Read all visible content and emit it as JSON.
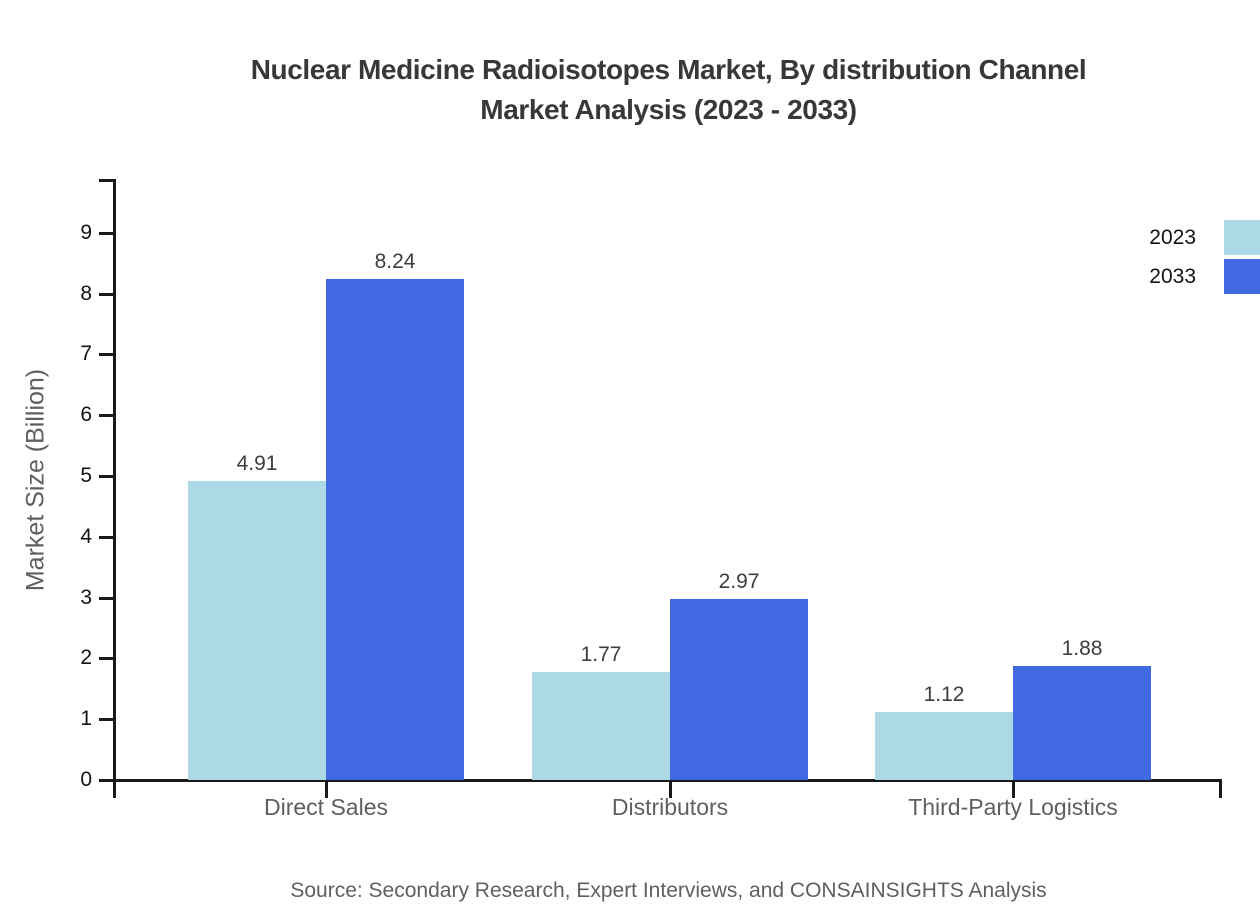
{
  "title": {
    "line1": "Nuclear Medicine Radioisotopes Market, By distribution Channel",
    "line2": "Market Analysis (2023 - 2033)"
  },
  "source": "Source: Secondary Research, Expert Interviews, and CONSAINSIGHTS Analysis",
  "chart_data": {
    "type": "bar",
    "categories": [
      "Direct Sales",
      "Distributors",
      "Third-Party Logistics"
    ],
    "series": [
      {
        "name": "2023",
        "color": "#add8e6",
        "values": [
          4.91,
          1.77,
          1.12
        ]
      },
      {
        "name": "2033",
        "color": "#4169e1",
        "values": [
          8.24,
          2.97,
          1.88
        ]
      }
    ],
    "title": "Nuclear Medicine Radioisotopes Market, By distribution Channel Market Analysis (2023 - 2033)",
    "xlabel": "",
    "ylabel": "Market Size (Billion)",
    "ylim": [
      0,
      9.87
    ],
    "yticks": [
      0,
      1,
      2,
      3,
      4,
      5,
      6,
      7,
      8,
      9
    ],
    "grid": false,
    "legend_position": "top-right",
    "value_labels": true,
    "value_label_format": "0.00"
  }
}
